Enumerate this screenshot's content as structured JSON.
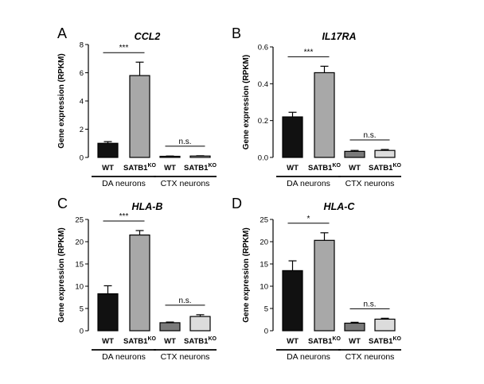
{
  "figure": {
    "ylabel": "Gene expression (RPKM)"
  },
  "colors": {
    "wt_da": "#111111",
    "ko_da": "#a8a8a8",
    "wt_ctx": "#7a7a7a",
    "ko_ctx": "#dcdcdc"
  },
  "chart_data": [
    {
      "panel": "A",
      "type": "bar",
      "title": "CCL2",
      "ylabel": "Gene expression (RPKM)",
      "ylim": [
        0,
        8
      ],
      "yticks": [
        "0",
        "2",
        "4",
        "6",
        "8"
      ],
      "categories": [
        "WT",
        "SATB1",
        "WT",
        "SATB1"
      ],
      "category_superscripts": [
        "",
        "KO",
        "",
        "KO"
      ],
      "groups": [
        "DA neurons",
        "CTX neurons"
      ],
      "values": [
        1.0,
        5.8,
        0.08,
        0.1
      ],
      "errors": [
        0.12,
        0.95,
        0.02,
        0.02
      ],
      "significance": [
        "***",
        "n.s."
      ]
    },
    {
      "panel": "B",
      "type": "bar",
      "title": "IL17RA",
      "ylabel": "Gene expression (RPKM)",
      "ylim": [
        0,
        0.6
      ],
      "yticks": [
        "0.0",
        "0.2",
        "0.4",
        "0.6"
      ],
      "categories": [
        "WT",
        "SATB1",
        "WT",
        "SATB1"
      ],
      "category_superscripts": [
        "",
        "KO",
        "",
        "KO"
      ],
      "groups": [
        "DA neurons",
        "CTX neurons"
      ],
      "values": [
        0.22,
        0.46,
        0.033,
        0.038
      ],
      "errors": [
        0.025,
        0.035,
        0.005,
        0.005
      ],
      "significance": [
        "***",
        "n.s."
      ]
    },
    {
      "panel": "C",
      "type": "bar",
      "title": "HLA-B",
      "ylabel": "Gene expression (RPKM)",
      "ylim": [
        0,
        25
      ],
      "yticks": [
        "0",
        "5",
        "10",
        "15",
        "20",
        "25"
      ],
      "categories": [
        "WT",
        "SATB1",
        "WT",
        "SATB1"
      ],
      "category_superscripts": [
        "",
        "KO",
        "",
        "KO"
      ],
      "groups": [
        "DA neurons",
        "CTX neurons"
      ],
      "values": [
        8.3,
        21.5,
        1.8,
        3.2
      ],
      "errors": [
        1.8,
        1.0,
        0.15,
        0.4
      ],
      "significance": [
        "***",
        "n.s."
      ]
    },
    {
      "panel": "D",
      "type": "bar",
      "title": "HLA-C",
      "ylabel": "Gene expression (RPKM)",
      "ylim": [
        0,
        25
      ],
      "yticks": [
        "0",
        "5",
        "10",
        "15",
        "20",
        "25"
      ],
      "categories": [
        "WT",
        "SATB1",
        "WT",
        "SATB1"
      ],
      "category_superscripts": [
        "",
        "KO",
        "",
        "KO"
      ],
      "groups": [
        "DA neurons",
        "CTX neurons"
      ],
      "values": [
        13.5,
        20.3,
        1.7,
        2.6
      ],
      "errors": [
        2.2,
        1.7,
        0.2,
        0.2
      ],
      "significance": [
        "*",
        "n.s."
      ]
    }
  ]
}
